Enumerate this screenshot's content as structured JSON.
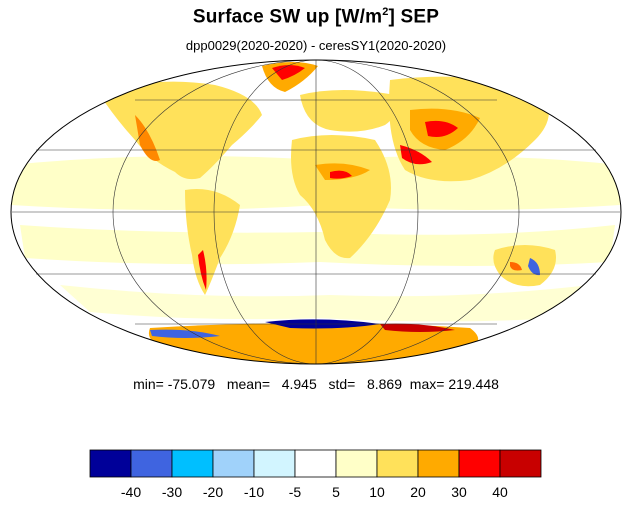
{
  "title": {
    "main": "Surface SW up [W/m",
    "superscript": "2",
    "suffix": "]  SEP"
  },
  "subtitle": "dpp0029(2020-2020) - ceresSY1(2020-2020)",
  "stats": {
    "min_label": "min=",
    "min": "-75.079",
    "mean_label": "mean=",
    "mean": "4.945",
    "std_label": "std=",
    "std": "8.869",
    "max_label": "max=",
    "max": "219.448"
  },
  "colorbar": {
    "colors": [
      "#000099",
      "#3f64e0",
      "#00bfff",
      "#a0d2fa",
      "#d2f5ff",
      "#ffffff",
      "#ffffc8",
      "#ffe15a",
      "#ffaa00",
      "#ff0000",
      "#c80000"
    ],
    "tick_labels": [
      "-40",
      "-30",
      "-20",
      "-10",
      "-5",
      "5",
      "10",
      "20",
      "30",
      "40"
    ]
  },
  "map": {
    "projection": "Mollweide",
    "colors": {
      "ocean_light": "#ffffc8",
      "land_mid": "#ffe15a",
      "land_warm": "#ffaa00",
      "hot": "#ff0000",
      "cool": "#a0d2fa",
      "deep_blue": "#000099"
    }
  }
}
